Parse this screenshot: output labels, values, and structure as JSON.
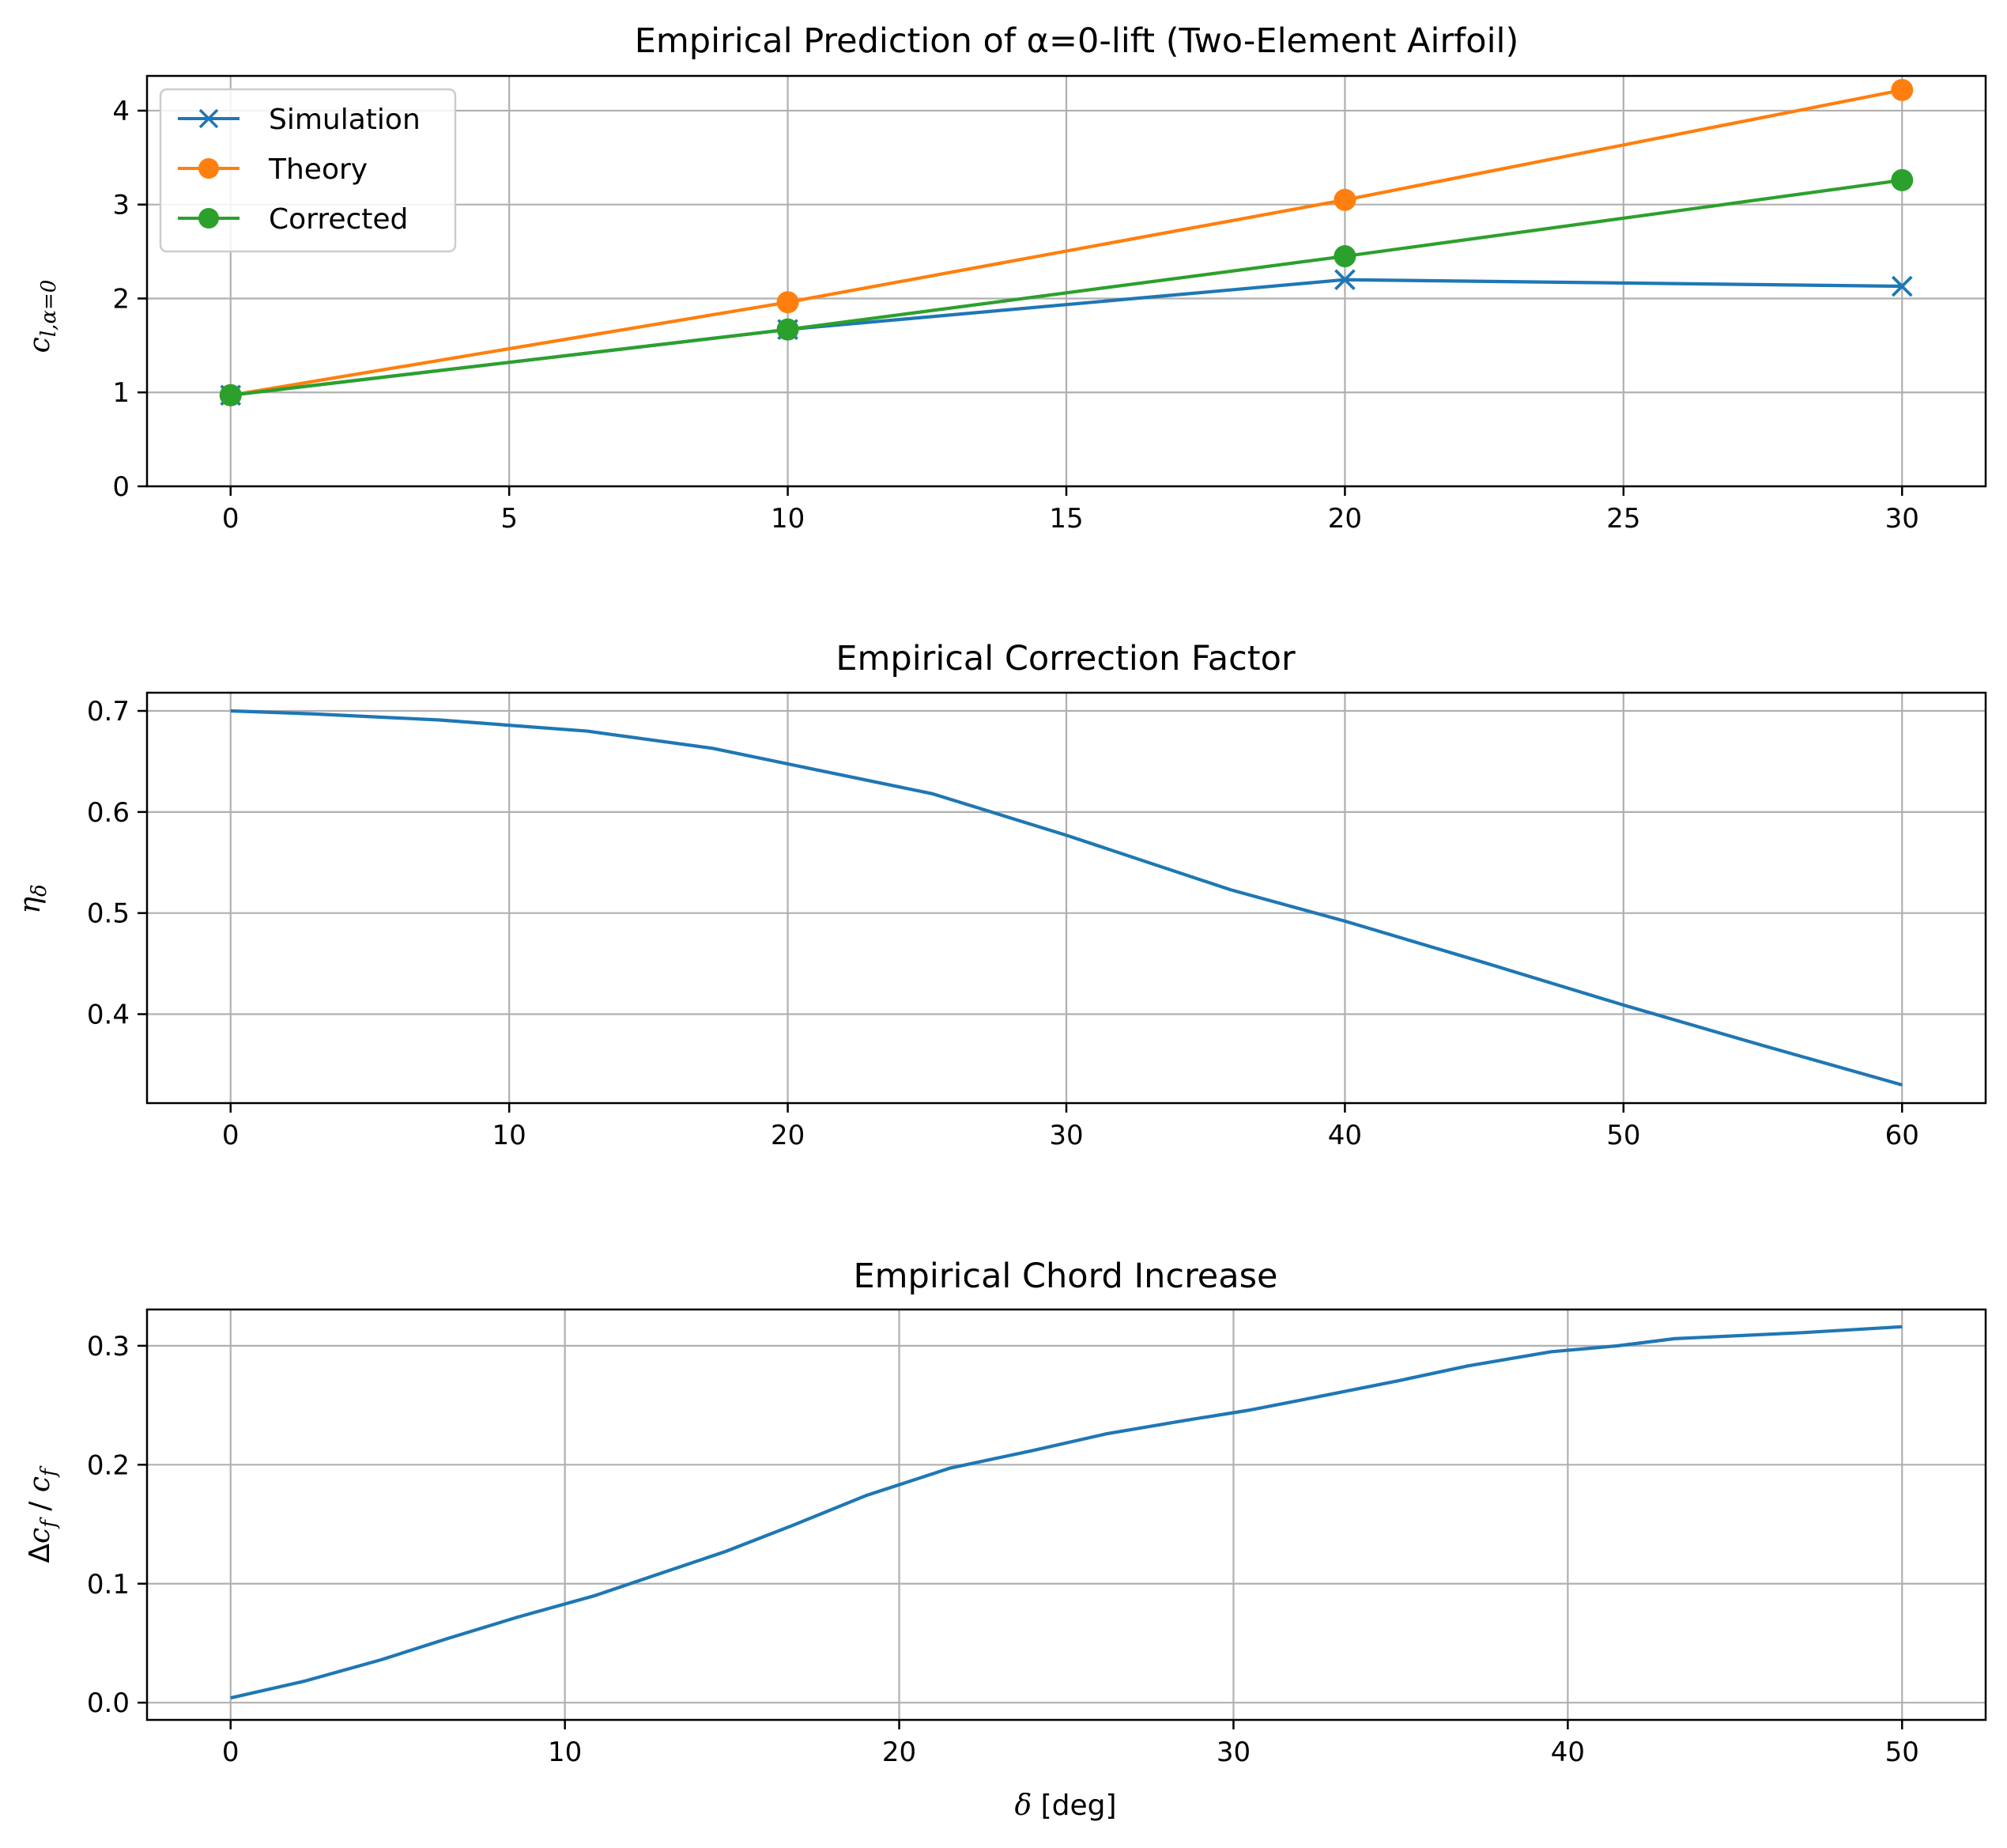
{
  "colors": {
    "simulation": "#1f77b4",
    "theory": "#ff7f0e",
    "corrected": "#2ca02c",
    "grid": "#b0b0b0"
  },
  "chart_data": [
    {
      "type": "line",
      "title": "Empirical Prediction of α=0-lift (Two-Element Airfoil)",
      "xlabel": "",
      "ylabel": "c_{l,α=0}",
      "xlim": [
        -1.5,
        31.5
      ],
      "ylim": [
        0,
        4.37
      ],
      "xticks": [
        "0",
        "5",
        "10",
        "15",
        "20",
        "25",
        "30"
      ],
      "yticks": [
        "0",
        "1",
        "2",
        "3",
        "4"
      ],
      "grid": true,
      "legend": "top-left",
      "x": [
        0,
        10,
        20,
        30
      ],
      "series": [
        {
          "name": "Simulation",
          "marker": "x",
          "values": [
            0.97,
            1.67,
            2.2,
            2.13
          ]
        },
        {
          "name": "Theory",
          "marker": "o",
          "values": [
            0.97,
            1.96,
            3.05,
            4.22
          ]
        },
        {
          "name": "Corrected",
          "marker": "o",
          "values": [
            0.97,
            1.67,
            2.45,
            3.26
          ]
        }
      ]
    },
    {
      "type": "line",
      "title": "Empirical Correction Factor",
      "xlabel": "",
      "ylabel": "η_δ",
      "xlim": [
        -3,
        63
      ],
      "ylim": [
        0.312,
        0.718
      ],
      "xticks": [
        "0",
        "10",
        "20",
        "30",
        "40",
        "50",
        "60"
      ],
      "yticks": [
        "0.4",
        "0.5",
        "0.6",
        "0.7"
      ],
      "grid": true,
      "x": [
        0,
        3,
        7.5,
        12.8,
        17.3,
        21.5,
        25.2,
        30,
        35.9,
        40,
        45,
        50,
        55,
        60
      ],
      "series": [
        {
          "values": [
            0.7,
            0.697,
            0.691,
            0.68,
            0.663,
            0.639,
            0.618,
            0.577,
            0.523,
            0.492,
            0.451,
            0.409,
            0.369,
            0.33
          ]
        }
      ]
    },
    {
      "type": "line",
      "title": "Empirical Chord Increase",
      "xlabel": "δ [deg]",
      "ylabel": "Δc_f / c_f",
      "xlim": [
        -2.5,
        52.5
      ],
      "ylim": [
        -0.0145,
        0.3305
      ],
      "xticks": [
        "0",
        "10",
        "20",
        "30",
        "40",
        "50"
      ],
      "yticks": [
        "0.0",
        "0.1",
        "0.2",
        "0.3"
      ],
      "grid": true,
      "x": [
        0,
        2.2,
        4.5,
        6.5,
        8.6,
        10.9,
        13,
        14.8,
        16.9,
        19,
        21.5,
        24,
        26.2,
        28.5,
        30.5,
        32.5,
        35,
        37,
        39.5,
        41.5,
        43.2,
        47,
        50
      ],
      "series": [
        {
          "values": [
            0.004,
            0.018,
            0.036,
            0.054,
            0.072,
            0.09,
            0.11,
            0.127,
            0.15,
            0.174,
            0.197,
            0.212,
            0.226,
            0.237,
            0.246,
            0.257,
            0.271,
            0.283,
            0.295,
            0.3,
            0.306,
            0.311,
            0.316
          ]
        }
      ]
    }
  ]
}
